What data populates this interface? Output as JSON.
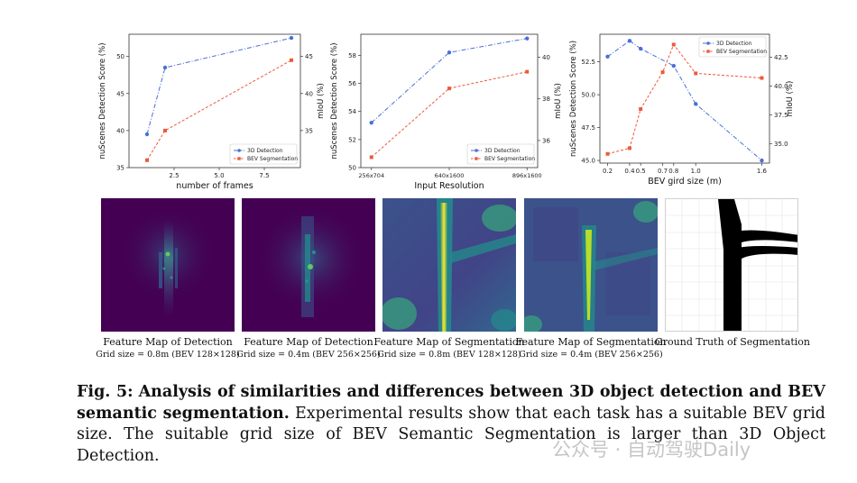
{
  "chart_data": [
    {
      "type": "line",
      "xlabel": "number of frames",
      "ylabel": "nuScenes Detection Score (%)",
      "y2label": "mIoU (%)",
      "xticks": [
        "2.5",
        "5.0",
        "7.5"
      ],
      "yticks": [
        "35",
        "40",
        "45",
        "50"
      ],
      "y2ticks": [
        "35",
        "40",
        "45"
      ],
      "xlim": [
        0,
        9.5
      ],
      "ylim": [
        35,
        53
      ],
      "y2lim": [
        30,
        48
      ],
      "legend": [
        "3D Detection",
        "BEV Segmentation"
      ],
      "legend_position": "lower-right",
      "series": [
        {
          "name": "3D Detection",
          "axis": "left",
          "color": "#4a6fd8",
          "x": [
            1,
            2,
            9
          ],
          "y": [
            39.5,
            48.5,
            52.5
          ]
        },
        {
          "name": "BEV Segmentation",
          "axis": "right",
          "color": "#ec5a3c",
          "x": [
            1,
            2,
            9
          ],
          "y": [
            31,
            35,
            44.5
          ]
        }
      ]
    },
    {
      "type": "line",
      "xlabel": "Input Resolution",
      "ylabel": "nuScenes Detection Score (%)",
      "y2label": "mIoU (%)",
      "categories": [
        "256x704",
        "640x1600",
        "896x1600"
      ],
      "yticks": [
        "50",
        "52",
        "54",
        "56",
        "58"
      ],
      "y2ticks": [
        "36",
        "38",
        "40"
      ],
      "ylim": [
        50,
        59.5
      ],
      "y2lim": [
        34.7,
        41.1
      ],
      "legend": [
        "3D Detection",
        "BEV Segmentation"
      ],
      "legend_position": "lower-right",
      "series": [
        {
          "name": "3D Detection",
          "axis": "left",
          "color": "#4a6fd8",
          "values": [
            53.2,
            58.2,
            59.2
          ]
        },
        {
          "name": "BEV Segmentation",
          "axis": "right",
          "color": "#ec5a3c",
          "values": [
            35.2,
            38.5,
            39.3
          ]
        }
      ]
    },
    {
      "type": "line",
      "xlabel": "BEV gird size (m)",
      "ylabel": "nuScenes Detection Score (%)",
      "y2label": "mIoU (%)",
      "xticks": [
        "0.2",
        "0.4",
        "0.5",
        "0.7",
        "0.8",
        "1.0",
        "1.6"
      ],
      "yticks": [
        "45.0",
        "47.5",
        "50.0",
        "52.5"
      ],
      "y2ticks": [
        "35.0",
        "37.5",
        "40.0",
        "42.5"
      ],
      "xlim": [
        0.13,
        1.67
      ],
      "ylim": [
        44.8,
        54.6
      ],
      "y2lim": [
        33.3,
        44.5
      ],
      "legend": [
        "3D Detection",
        "BEV Segmentation"
      ],
      "legend_position": "top-right",
      "series": [
        {
          "name": "3D Detection",
          "axis": "left",
          "color": "#4a6fd8",
          "x": [
            0.2,
            0.4,
            0.5,
            0.8,
            1.0,
            1.6
          ],
          "y": [
            52.9,
            54.1,
            53.5,
            52.2,
            49.3,
            45.0
          ]
        },
        {
          "name": "BEV Segmentation",
          "axis": "right",
          "color": "#ec5a3c",
          "x": [
            0.2,
            0.4,
            0.5,
            0.7,
            0.8,
            1.0,
            1.6
          ],
          "y": [
            34.1,
            34.6,
            38.0,
            41.2,
            43.6,
            41.1,
            40.7
          ]
        }
      ]
    }
  ],
  "figures": [
    {
      "title": "Feature Map of Detection",
      "subtitle": "Grid size = 0.8m (BEV 128×128)"
    },
    {
      "title": "Feature Map of Detection",
      "subtitle": "Grid size = 0.4m (BEV 256×256)"
    },
    {
      "title": "Feature Map of Segmentation",
      "subtitle": "Grid size = 0.8m (BEV 128×128)"
    },
    {
      "title": "Feature Map of Segmentation",
      "subtitle": "Grid size = 0.4m (BEV 256×256)"
    },
    {
      "title": "Ground Truth of Segmentation",
      "subtitle": ""
    }
  ],
  "caption": {
    "label": "Fig. 5:",
    "bold": "Analysis of similarities and differences between 3D object detection and BEV semantic segmentation.",
    "text": "Experimental results show that each task has a suitable BEV grid size. The suitable grid size of BEV Semantic Segmentation is larger than 3D Object Detection."
  },
  "watermark": "公众号 · 自动驾驶Daily",
  "colors": {
    "detection": "#4a6fd8",
    "segmentation": "#ec5a3c",
    "viridis_dark": "#440154",
    "viridis_yellow": "#fde725"
  }
}
